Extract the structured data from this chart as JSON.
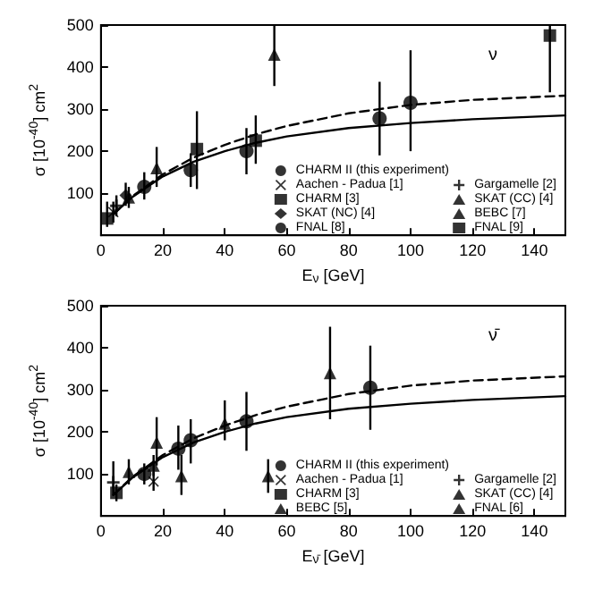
{
  "chart_data": [
    {
      "type": "scatter",
      "xlabel": "E$_{ν}$ [GeV]",
      "ylabel": "σ [10$^{-40}$] cm$^{2}$",
      "annotations": [
        "ν"
      ],
      "xlim": [
        0,
        150
      ],
      "xticks": [
        0,
        20,
        40,
        60,
        80,
        100,
        120,
        140
      ],
      "ylim": [
        0,
        500
      ],
      "yticks": [
        100,
        200,
        300,
        400,
        500
      ],
      "grid": false,
      "legend": "bottom right",
      "series": [
        {
          "name": "CHARM II (this experiment)",
          "color": "#000000",
          "marker": "circle",
          "x": [
            14,
            29,
            47,
            90
          ],
          "values": [
            115,
            155,
            200,
            278
          ],
          "errors": [
            [
              85,
              150
            ],
            [
              115,
              195
            ],
            [
              145,
              255
            ],
            [
              190,
              365
            ]
          ]
        },
        {
          "name": "Aachen - Padua [1]",
          "color": "#000000",
          "marker": "cross",
          "x": [
            4
          ],
          "values": [
            55
          ],
          "errors": [
            [
              30,
              80
            ]
          ]
        },
        {
          "name": "CHARM [3]",
          "color": "#000000",
          "marker": "square",
          "x": [
            31
          ],
          "values": [
            205
          ],
          "errors": [
            [
              110,
              295
            ]
          ]
        },
        {
          "name": "SKAT (NC) [4]",
          "color": "#000000",
          "marker": "diamond",
          "x": [
            8
          ],
          "values": [
            95
          ],
          "errors": [
            [
              70,
              125
            ]
          ]
        },
        {
          "name": "FNAL [8]",
          "color": "#000000",
          "marker": "circle",
          "x": [
            100
          ],
          "values": [
            315
          ],
          "errors": [
            [
              200,
              440
            ]
          ]
        },
        {
          "name": "Gargamelle [2]",
          "color": "#000000",
          "marker": "plus",
          "x": [
            5
          ],
          "values": [
            70
          ],
          "errors": [
            [
              45,
              95
            ]
          ]
        },
        {
          "name": "SKAT (CC) [4]",
          "color": "#000000",
          "marker": "triangle",
          "x": [
            9
          ],
          "values": [
            90
          ],
          "errors": [
            [
              65,
              115
            ]
          ]
        },
        {
          "name": "BEBC [7]",
          "color": "#000000",
          "marker": "triangle",
          "x": [
            18,
            56
          ],
          "values": [
            160,
            430
          ],
          "errors": [
            [
              115,
              210
            ],
            [
              355,
              500
            ]
          ]
        },
        {
          "name": "FNAL [9]",
          "color": "#000000",
          "marker": "square",
          "x": [
            2,
            50,
            145
          ],
          "values": [
            40,
            225,
            475
          ],
          "errors": [
            [
              20,
              80
            ],
            [
              170,
              285
            ],
            [
              340,
              500
            ]
          ]
        },
        {
          "type": "line",
          "color": "#000000",
          "line_style": "solid",
          "marker": "none",
          "x": [
            4,
            10,
            20,
            30,
            40,
            50,
            60,
            80,
            100,
            120,
            150
          ],
          "values": [
            50,
            90,
            140,
            175,
            200,
            220,
            235,
            255,
            267,
            276,
            285
          ]
        },
        {
          "type": "line",
          "color": "#000000",
          "line_style": "dashed",
          "marker": "none",
          "x": [
            4,
            10,
            20,
            30,
            40,
            50,
            60,
            80,
            100,
            120,
            150
          ],
          "values": [
            50,
            92,
            145,
            185,
            215,
            240,
            260,
            290,
            310,
            322,
            332
          ]
        }
      ]
    },
    {
      "type": "scatter",
      "xlabel": "E$_{ν̄}$ [GeV]",
      "ylabel": "σ [10$^{-40}$] cm$^{2}$",
      "annotations": [
        "ν̄"
      ],
      "xlim": [
        0,
        150
      ],
      "xticks": [
        0,
        20,
        40,
        60,
        80,
        100,
        120,
        140
      ],
      "ylim": [
        0,
        500
      ],
      "yticks": [
        100,
        200,
        300,
        400,
        500
      ],
      "grid": false,
      "legend": "bottom right",
      "series": [
        {
          "name": "CHARM II (this experiment)",
          "color": "#000000",
          "marker": "circle",
          "x": [
            14,
            25,
            29,
            47,
            87
          ],
          "values": [
            100,
            160,
            180,
            225,
            305
          ],
          "errors": [
            [
              75,
              125
            ],
            [
              110,
              215
            ],
            [
              125,
              230
            ],
            [
              155,
              295
            ],
            [
              205,
              405
            ]
          ]
        },
        {
          "name": "Aachen - Padua [1]",
          "color": "#000000",
          "marker": "cross",
          "x": [
            17
          ],
          "values": [
            82
          ],
          "errors": [
            [
              60,
              105
            ]
          ]
        },
        {
          "name": "CHARM [3]",
          "color": "#000000",
          "marker": "square",
          "x": [
            5
          ],
          "values": [
            55
          ],
          "errors": [
            [
              35,
              75
            ]
          ]
        },
        {
          "name": "BEBC [5]",
          "color": "#000000",
          "marker": "triangle",
          "x": [
            17,
            40,
            74
          ],
          "values": [
            120,
            220,
            340
          ],
          "errors": [
            [
              95,
              145
            ],
            [
              180,
              275
            ],
            [
              230,
              450
            ]
          ]
        },
        {
          "name": "Gargamelle [2]",
          "color": "#000000",
          "marker": "plus",
          "x": [
            4
          ],
          "values": [
            80
          ],
          "errors": [
            [
              50,
              130
            ]
          ]
        },
        {
          "name": "SKAT (CC) [4]",
          "color": "#000000",
          "marker": "triangle",
          "x": [
            9
          ],
          "values": [
            105
          ],
          "errors": [
            [
              75,
              135
            ]
          ]
        },
        {
          "name": "FNAL [6]",
          "color": "#000000",
          "marker": "triangle",
          "x": [
            18,
            26,
            54
          ],
          "values": [
            175,
            95,
            95
          ],
          "errors": [
            [
              120,
              235
            ],
            [
              50,
              145
            ],
            [
              55,
              135
            ]
          ]
        },
        {
          "type": "line",
          "color": "#000000",
          "line_style": "solid",
          "marker": "none",
          "x": [
            4,
            10,
            20,
            30,
            40,
            50,
            60,
            80,
            100,
            120,
            150
          ],
          "values": [
            50,
            90,
            140,
            175,
            200,
            220,
            235,
            255,
            267,
            276,
            285
          ]
        },
        {
          "type": "line",
          "color": "#000000",
          "line_style": "dashed",
          "marker": "none",
          "x": [
            4,
            10,
            20,
            30,
            40,
            50,
            60,
            80,
            100,
            120,
            150
          ],
          "values": [
            50,
            92,
            145,
            185,
            215,
            240,
            260,
            290,
            310,
            322,
            332
          ]
        }
      ]
    }
  ]
}
